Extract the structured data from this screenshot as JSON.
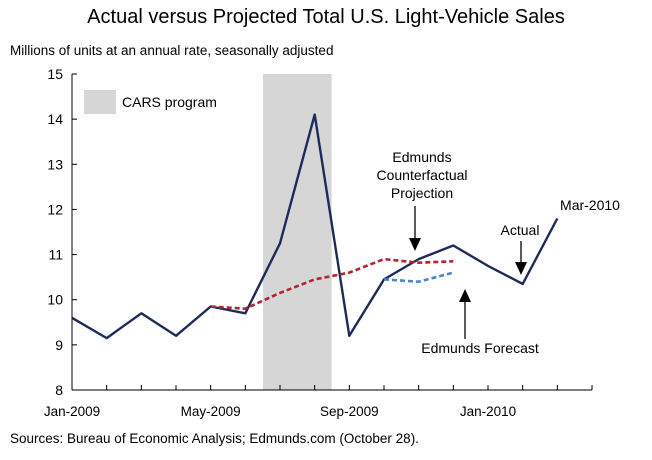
{
  "title": "Actual versus Projected Total U.S. Light-Vehicle Sales",
  "subtitle": "Millions of units at an annual rate, seasonally adjusted",
  "source": "Sources: Bureau of Economic Analysis; Edmunds.com (October 28).",
  "chart_data": {
    "type": "line",
    "ylim": [
      8,
      15
    ],
    "y_ticks": [
      8,
      9,
      10,
      11,
      12,
      13,
      14,
      15
    ],
    "x_range": [
      "2009-01",
      "2010-04"
    ],
    "x_ticks": [
      {
        "label": "Jan-2009",
        "month": "2009-01"
      },
      {
        "label": "May-2009",
        "month": "2009-05"
      },
      {
        "label": "Sep-2009",
        "month": "2009-09"
      },
      {
        "label": "Jan-2010",
        "month": "2010-01"
      }
    ],
    "shaded_region": {
      "label": "CARS program",
      "from": "2009-07",
      "to": "2009-08",
      "color": "#d6d6d6"
    },
    "series": [
      {
        "name": "Actual",
        "style": "solid",
        "color": "#1f2a5c",
        "points": [
          {
            "x": "2009-01",
            "y": 9.6
          },
          {
            "x": "2009-02",
            "y": 9.15
          },
          {
            "x": "2009-03",
            "y": 9.7
          },
          {
            "x": "2009-04",
            "y": 9.2
          },
          {
            "x": "2009-05",
            "y": 9.85
          },
          {
            "x": "2009-06",
            "y": 9.7
          },
          {
            "x": "2009-07",
            "y": 11.25
          },
          {
            "x": "2009-08",
            "y": 14.1
          },
          {
            "x": "2009-09",
            "y": 9.2
          },
          {
            "x": "2009-10",
            "y": 10.45
          },
          {
            "x": "2009-11",
            "y": 10.9
          },
          {
            "x": "2009-12",
            "y": 11.2
          },
          {
            "x": "2010-01",
            "y": 10.75
          },
          {
            "x": "2010-02",
            "y": 10.35
          },
          {
            "x": "2010-03",
            "y": 11.8
          }
        ]
      },
      {
        "name": "Edmunds Counterfactual Projection",
        "style": "dashed",
        "color": "#b3242e",
        "points": [
          {
            "x": "2009-05",
            "y": 9.85
          },
          {
            "x": "2009-06",
            "y": 9.8
          },
          {
            "x": "2009-07",
            "y": 10.15
          },
          {
            "x": "2009-08",
            "y": 10.45
          },
          {
            "x": "2009-09",
            "y": 10.6
          },
          {
            "x": "2009-10",
            "y": 10.9
          },
          {
            "x": "2009-11",
            "y": 10.82
          },
          {
            "x": "2009-12",
            "y": 10.85
          }
        ]
      },
      {
        "name": "Edmunds Forecast",
        "style": "dashed",
        "color": "#4a86c8",
        "points": [
          {
            "x": "2009-10",
            "y": 10.45
          },
          {
            "x": "2009-11",
            "y": 10.4
          },
          {
            "x": "2009-12",
            "y": 10.6
          }
        ]
      }
    ],
    "annotations": [
      {
        "lines": [
          "Edmunds",
          "Counterfactual",
          "Projection"
        ]
      },
      {
        "lines": [
          "Actual"
        ]
      },
      {
        "lines": [
          "Mar-2010"
        ]
      },
      {
        "lines": [
          "Edmunds Forecast"
        ]
      }
    ]
  }
}
